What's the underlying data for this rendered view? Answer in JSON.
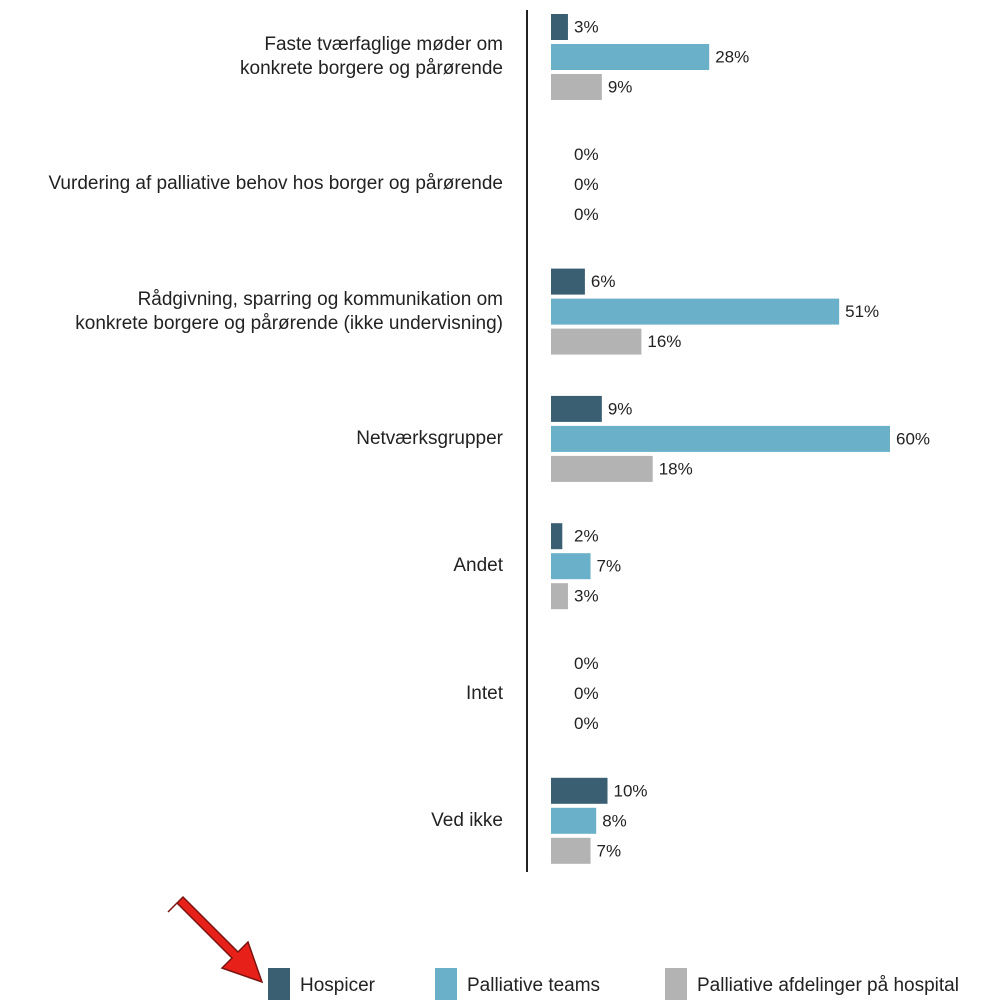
{
  "chart_data": {
    "type": "bar",
    "orientation": "horizontal",
    "categories": [
      "Faste tværfaglige møder om\nkonkrete borgere og pårørende",
      "Vurdering af palliative behov hos borger og pårørende",
      "Rådgivning, sparring og kommunikation om\nkonkrete borgere og pårørende (ikke undervisning)",
      "Netværksgrupper",
      "Andet",
      "Intet",
      "Ved ikke"
    ],
    "series": [
      {
        "name": "Hospicer",
        "color": "#3a5f72",
        "values": [
          3,
          0,
          6,
          9,
          2,
          0,
          10
        ],
        "value_labels": [
          "3%",
          "0%",
          "6%",
          "9%",
          "2%",
          "0%",
          "10%"
        ]
      },
      {
        "name": "Palliative teams",
        "color": "#6ab0c8",
        "values": [
          28,
          0,
          51,
          60,
          7,
          0,
          8
        ],
        "value_labels": [
          "28%",
          "0%",
          "51%",
          "60%",
          "7%",
          "0%",
          "8%"
        ]
      },
      {
        "name": "Palliative afdelinger på hospital",
        "color": "#b3b3b3",
        "values": [
          9,
          0,
          16,
          18,
          3,
          0,
          7
        ],
        "value_labels": [
          "9%",
          "0%",
          "16%",
          "18%",
          "3%",
          "0%",
          "7%"
        ]
      }
    ],
    "legend": "bottom"
  }
}
